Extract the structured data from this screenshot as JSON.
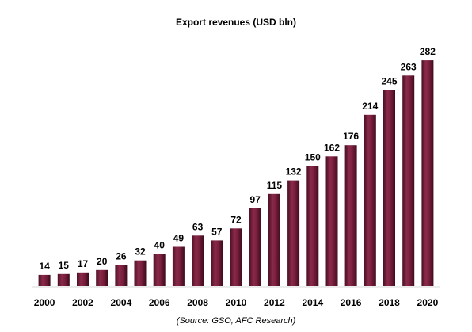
{
  "chart_data": {
    "type": "bar",
    "title": "Export revenues (USD bln)",
    "categories": [
      "2000",
      "2001",
      "2002",
      "2003",
      "2004",
      "2005",
      "2006",
      "2007",
      "2008",
      "2009",
      "2010",
      "2011",
      "2012",
      "2013",
      "2014",
      "2015",
      "2016",
      "2017",
      "2018",
      "2019",
      "2020"
    ],
    "values": [
      14,
      15,
      17,
      20,
      26,
      32,
      40,
      49,
      63,
      57,
      72,
      97,
      115,
      132,
      150,
      162,
      176,
      214,
      245,
      263,
      282
    ],
    "tick_labels": [
      "2000",
      "",
      "2002",
      "",
      "2004",
      "",
      "2006",
      "",
      "2008",
      "",
      "2010",
      "",
      "2012",
      "",
      "2014",
      "",
      "2016",
      "",
      "2018",
      "",
      "2020"
    ],
    "xlabel": "",
    "ylabel": "",
    "ylim": [
      0,
      290
    ],
    "grid": false,
    "legend": "none",
    "bar_color": "#7b1f3d",
    "source": "(Source: GSO, AFC Research)"
  }
}
